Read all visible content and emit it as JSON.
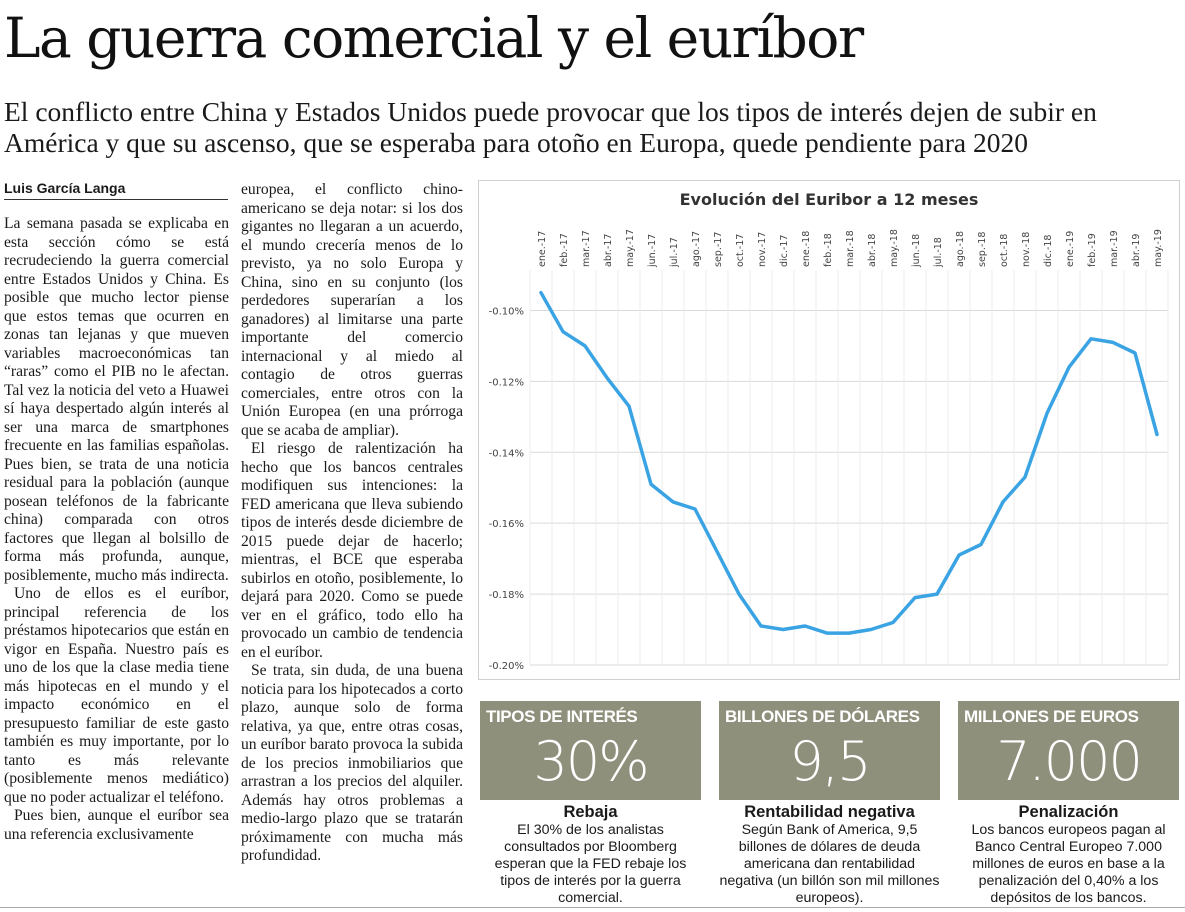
{
  "article": {
    "headline": "La guerra comercial y el euríbor",
    "subhead": "El conflicto entre China y Estados Unidos puede provocar que los tipos de interés dejen de subir en América y que su ascenso, que se esperaba para otoño en Europa, quede pendiente para 2020",
    "byline": "Luis García Langa",
    "col1": [
      "La semana pasada se explicaba en esta sección cómo se está recrudeciendo la guerra comercial entre Estados Unidos y China. Es posible que mucho lector piense que estos temas que ocurren en zonas tan lejanas y que mueven variables macroeconómicas tan “raras” como el PIB no le afectan. Tal vez la noticia del veto a Huawei sí haya despertado algún interés al ser una marca de smartphones frecuente en las familias españolas. Pues bien, se trata de una noticia residual para la población (aunque posean teléfonos de la fabricante china) comparada con otros factores que llegan al bolsillo de forma más profunda, aunque, posiblemente, mucho más indirecta.",
      "Uno de ellos es el euríbor, principal referencia de los préstamos hipotecarios que están en vigor en España. Nuestro país es uno de los que la clase media tiene más hipotecas en el mundo y el impacto económico en el presupuesto familiar de este gasto también es muy importante, por lo tanto es más relevante (posiblemente menos mediático) que no poder actualizar el teléfono.",
      "Pues bien, aunque el euríbor sea una referencia exclusivamente"
    ],
    "col2": [
      "europea, el conflicto chino-americano se deja notar: si los dos gigantes no llegaran a un acuerdo, el mundo crecería menos de lo previsto, ya no solo Europa y China, sino en su conjunto (los perdedores superarían a los ganadores) al limitarse una parte importante del comercio internacional y al miedo al contagio de otros guerras comerciales, entre otros con la Unión Europea (en una prórroga que se acaba de ampliar).",
      "El riesgo de ralentización ha hecho que los bancos centrales modifiquen sus intenciones: la FED americana que lleva subiendo tipos de interés desde diciembre de 2015 puede dejar de hacerlo; mientras, el BCE que esperaba subirlos en otoño, posiblemente, lo dejará para 2020. Como se puede ver en el gráfico, todo ello ha provocado un cambio de tendencia en el euríbor.",
      "Se trata, sin duda, de una buena noticia para los hipotecados a corto plazo, aunque solo de forma relativa, ya que, entre otras cosas, un euríbor barato provoca la subida de los precios inmobiliarios que arrastran a los precios del alquiler. Además hay otros problemas a medio-largo plazo que se tratarán próximamente con mucha más profundidad."
    ]
  },
  "chart_data": {
    "type": "line",
    "title": "Evolución del Euribor a 12 meses",
    "x": [
      "ene.-17",
      "feb.-17",
      "mar.-17",
      "abr.-17",
      "may.-17",
      "jun.-17",
      "jul.-17",
      "ago.-17",
      "sep.-17",
      "oct.-17",
      "nov.-17",
      "dic.-17",
      "ene.-18",
      "feb.-18",
      "mar.-18",
      "abr.-18",
      "may.-18",
      "jun.-18",
      "jul.-18",
      "ago.-18",
      "sep.-18",
      "oct.-18",
      "nov.-18",
      "dic.-18",
      "ene.-19",
      "feb.-19",
      "mar.-19",
      "abr.-19",
      "may.-19"
    ],
    "x_tick_labels": [
      "ene.-17",
      "feb.-17",
      "mar.-17",
      "abr.-17",
      "may.-17",
      "jun.-17",
      "jul.-17",
      "ago.-17",
      "sep.-17",
      "oct.-17",
      "nov.-17",
      "dic.-17",
      "ene.-18",
      "feb.-18",
      "mar.-18",
      "abr.-18",
      "may.-18",
      "jun.-18",
      "jul.-18",
      "ago.-18",
      "sep.-18",
      "oct.-18",
      "nov.-18",
      "dic.-18",
      "ene.-19",
      "feb.-19",
      "mar.-19",
      "abr.-19",
      "may.-19"
    ],
    "series": [
      {
        "values": [
          -0.095,
          -0.106,
          -0.11,
          -0.119,
          -0.127,
          -0.149,
          -0.154,
          -0.156,
          -0.168,
          -0.18,
          -0.189,
          -0.19,
          -0.189,
          -0.191,
          -0.191,
          -0.19,
          -0.188,
          -0.181,
          -0.18,
          -0.169,
          -0.166,
          -0.154,
          -0.147,
          -0.129,
          -0.116,
          -0.108,
          -0.109,
          -0.112,
          -0.135
        ]
      }
    ],
    "y_ticks": [
      -0.1,
      -0.12,
      -0.14,
      -0.16,
      -0.18,
      -0.2
    ],
    "y_tick_labels": [
      "-0.10%",
      "-0.12%",
      "-0.14%",
      "-0.16%",
      "-0.18%",
      "-0.20%"
    ],
    "ylim": [
      -0.2,
      -0.09
    ],
    "grid": true,
    "line_color": "#3aa3e3"
  },
  "factboxes": [
    {
      "label": "TIPOS DE INTERÉS",
      "value": "30%",
      "title": "Rebaja",
      "text": "El 30% de los analistas consultados por Bloomberg esperan que la FED rebaje los tipos de interés por la guerra comercial."
    },
    {
      "label": "BILLONES DE DÓLARES",
      "value": "9,5",
      "title": "Rentabilidad negativa",
      "text": "Según Bank of America, 9,5 billones de dólares de deuda americana dan rentabilidad negativa (un billón son mil millones europeos)."
    },
    {
      "label": "MILLONES DE EUROS",
      "value": "7.000",
      "title": "Penalización",
      "text": "Los bancos europeos pagan al Banco Central Europeo 7.000 millones de euros en base a la penalización del 0,40% a los depósitos de los bancos."
    }
  ],
  "colors": {
    "factbox_bg": "#8f907c",
    "chart_line": "#3aa3e3",
    "grid": "#d9d9d9"
  }
}
